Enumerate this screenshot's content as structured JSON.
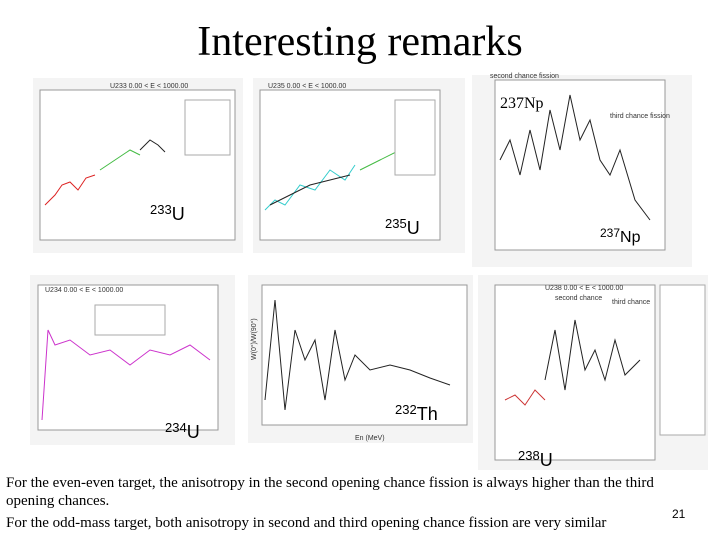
{
  "title": "Interesting remarks",
  "panels": [
    {
      "header": "U233   0.00 < E < 1000.00",
      "label": {
        "mass": "233",
        "symbol": "U"
      }
    },
    {
      "header": "U235   0.00 < E < 1000.00",
      "label": {
        "mass": "235",
        "symbol": "U"
      }
    },
    {
      "header": "237Np",
      "label": {
        "mass": "237",
        "symbol": "Np"
      },
      "notes": [
        "second chance fission",
        "third chance fission"
      ]
    },
    {
      "header": "U234   0.00 < E < 1000.00",
      "label": {
        "mass": "234",
        "symbol": "U"
      }
    },
    {
      "header": "W(0°)/W(90°)",
      "label": {
        "mass": "232",
        "symbol": "Th"
      },
      "xlabel": "En (MeV)"
    },
    {
      "header": "U238   0.00 < E < 1000.00",
      "label": {
        "mass": "238",
        "symbol": "U"
      },
      "notes": [
        "second chance",
        "third chance"
      ]
    }
  ],
  "text_lines": [
    "For the even-even target, the anisotropy in the second opening chance fission  is always higher than the third",
    "opening chances.",
    "For the odd-mass target, both anisotropy in second and third opening chance fission are very similar"
  ],
  "page_number": "21"
}
